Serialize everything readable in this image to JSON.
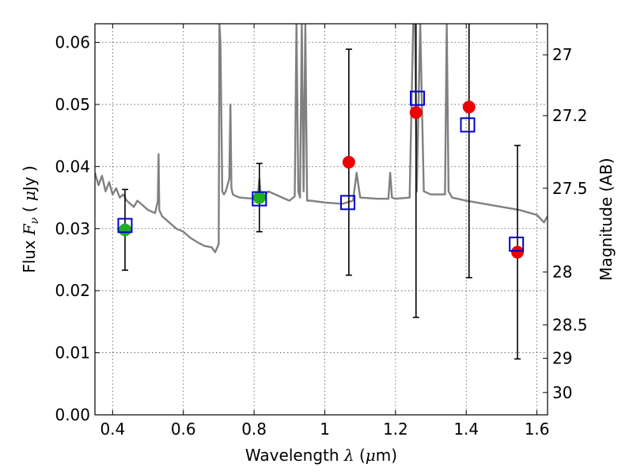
{
  "chart_data": {
    "type": "scatter",
    "xlabel": {
      "pre": "Wavelength ",
      "sym": "λ",
      "post": " (",
      "unit_sym": "μ",
      "unit": "m)"
    },
    "ylabel": {
      "pre": "Flux ",
      "sym": "F",
      "sub": "ν",
      "mid": " ( ",
      "unit_sym": "μ",
      "unit": "Jy )"
    },
    "y2label": "Magnitude (AB)",
    "xlim": [
      0.35,
      1.63
    ],
    "ylim": [
      0.0,
      0.063
    ],
    "x_ticks": [
      0.4,
      0.6,
      0.8,
      1.0,
      1.2,
      1.4,
      1.6
    ],
    "x_tick_labels": [
      "0.4",
      "0.6",
      "0.8",
      "1",
      "1.2",
      "1.4",
      "1.6"
    ],
    "y_ticks": [
      0.0,
      0.01,
      0.02,
      0.03,
      0.04,
      0.05,
      0.06
    ],
    "y_tick_labels": [
      "0.00",
      "0.01",
      "0.02",
      "0.03",
      "0.04",
      "0.05",
      "0.06"
    ],
    "y2_ticks": [
      {
        "label": "27",
        "flux": 0.058
      },
      {
        "label": "27.2",
        "flux": 0.0482
      },
      {
        "label": "27.5",
        "flux": 0.0365
      },
      {
        "label": "28",
        "flux": 0.023
      },
      {
        "label": "28.5",
        "flux": 0.0145
      },
      {
        "label": "29",
        "flux": 0.0091
      },
      {
        "label": "30",
        "flux": 0.0036
      }
    ],
    "grid": true,
    "colors": {
      "spectrum": "#808080",
      "green_points": "#1fae1f",
      "red_points": "#ee0000",
      "model_boxes": "#0000cc",
      "errorbars": "#000000"
    },
    "series": [
      {
        "kind": "spectrum",
        "x": [
          0.35,
          0.36,
          0.37,
          0.38,
          0.39,
          0.4,
          0.41,
          0.42,
          0.43,
          0.44,
          0.45,
          0.46,
          0.47,
          0.48,
          0.49,
          0.5,
          0.52,
          0.528,
          0.53,
          0.532,
          0.54,
          0.56,
          0.58,
          0.6,
          0.62,
          0.64,
          0.66,
          0.68,
          0.69,
          0.7,
          0.702,
          0.705,
          0.71,
          0.715,
          0.72,
          0.73,
          0.733,
          0.736,
          0.74,
          0.75,
          0.76,
          0.8,
          0.81,
          0.815,
          0.82,
          0.84,
          0.86,
          0.88,
          0.9,
          0.915,
          0.92,
          0.925,
          0.93,
          0.935,
          0.94,
          0.945,
          0.95,
          0.96,
          1.0,
          1.05,
          1.08,
          1.09,
          1.1,
          1.15,
          1.18,
          1.185,
          1.19,
          1.2,
          1.24,
          1.25,
          1.255,
          1.26,
          1.27,
          1.28,
          1.3,
          1.34,
          1.345,
          1.35,
          1.36,
          1.4,
          1.45,
          1.5,
          1.55,
          1.6,
          1.62,
          1.63
        ],
        "y": [
          0.039,
          0.037,
          0.0385,
          0.036,
          0.0375,
          0.0355,
          0.0365,
          0.035,
          0.0355,
          0.0345,
          0.034,
          0.0335,
          0.0345,
          0.034,
          0.0335,
          0.033,
          0.0325,
          0.0345,
          0.042,
          0.033,
          0.032,
          0.031,
          0.03,
          0.0295,
          0.0285,
          0.0278,
          0.0272,
          0.027,
          0.0262,
          0.0275,
          0.063,
          0.06,
          0.036,
          0.0355,
          0.036,
          0.038,
          0.05,
          0.0365,
          0.0355,
          0.0352,
          0.035,
          0.0348,
          0.035,
          0.038,
          0.0348,
          0.036,
          0.0355,
          0.035,
          0.0345,
          0.0352,
          0.063,
          0.036,
          0.035,
          0.063,
          0.036,
          0.063,
          0.0345,
          0.0345,
          0.0342,
          0.034,
          0.0345,
          0.039,
          0.035,
          0.0348,
          0.0348,
          0.039,
          0.035,
          0.0348,
          0.035,
          0.063,
          0.063,
          0.036,
          0.063,
          0.036,
          0.0355,
          0.0355,
          0.063,
          0.036,
          0.035,
          0.0345,
          0.034,
          0.0335,
          0.033,
          0.0322,
          0.031,
          0.032
        ]
      },
      {
        "kind": "observed_green",
        "points": [
          {
            "x": 0.435,
            "y": 0.0298,
            "yerr": 0.0065
          },
          {
            "x": 0.815,
            "y": 0.035,
            "yerr": 0.0055
          }
        ]
      },
      {
        "kind": "observed_red",
        "points": [
          {
            "x": 1.068,
            "y": 0.0407,
            "yerr": 0.0182
          },
          {
            "x": 1.258,
            "y": 0.0487,
            "yerr": 0.033
          },
          {
            "x": 1.408,
            "y": 0.0496,
            "yerr": 0.0275
          },
          {
            "x": 1.545,
            "y": 0.0262,
            "yerr": 0.0172
          }
        ]
      },
      {
        "kind": "model_boxes",
        "points": [
          {
            "x": 0.435,
            "y": 0.0305
          },
          {
            "x": 0.815,
            "y": 0.0348
          },
          {
            "x": 1.065,
            "y": 0.0342
          },
          {
            "x": 1.262,
            "y": 0.051
          },
          {
            "x": 1.404,
            "y": 0.0467
          },
          {
            "x": 1.542,
            "y": 0.0275
          }
        ]
      }
    ]
  }
}
